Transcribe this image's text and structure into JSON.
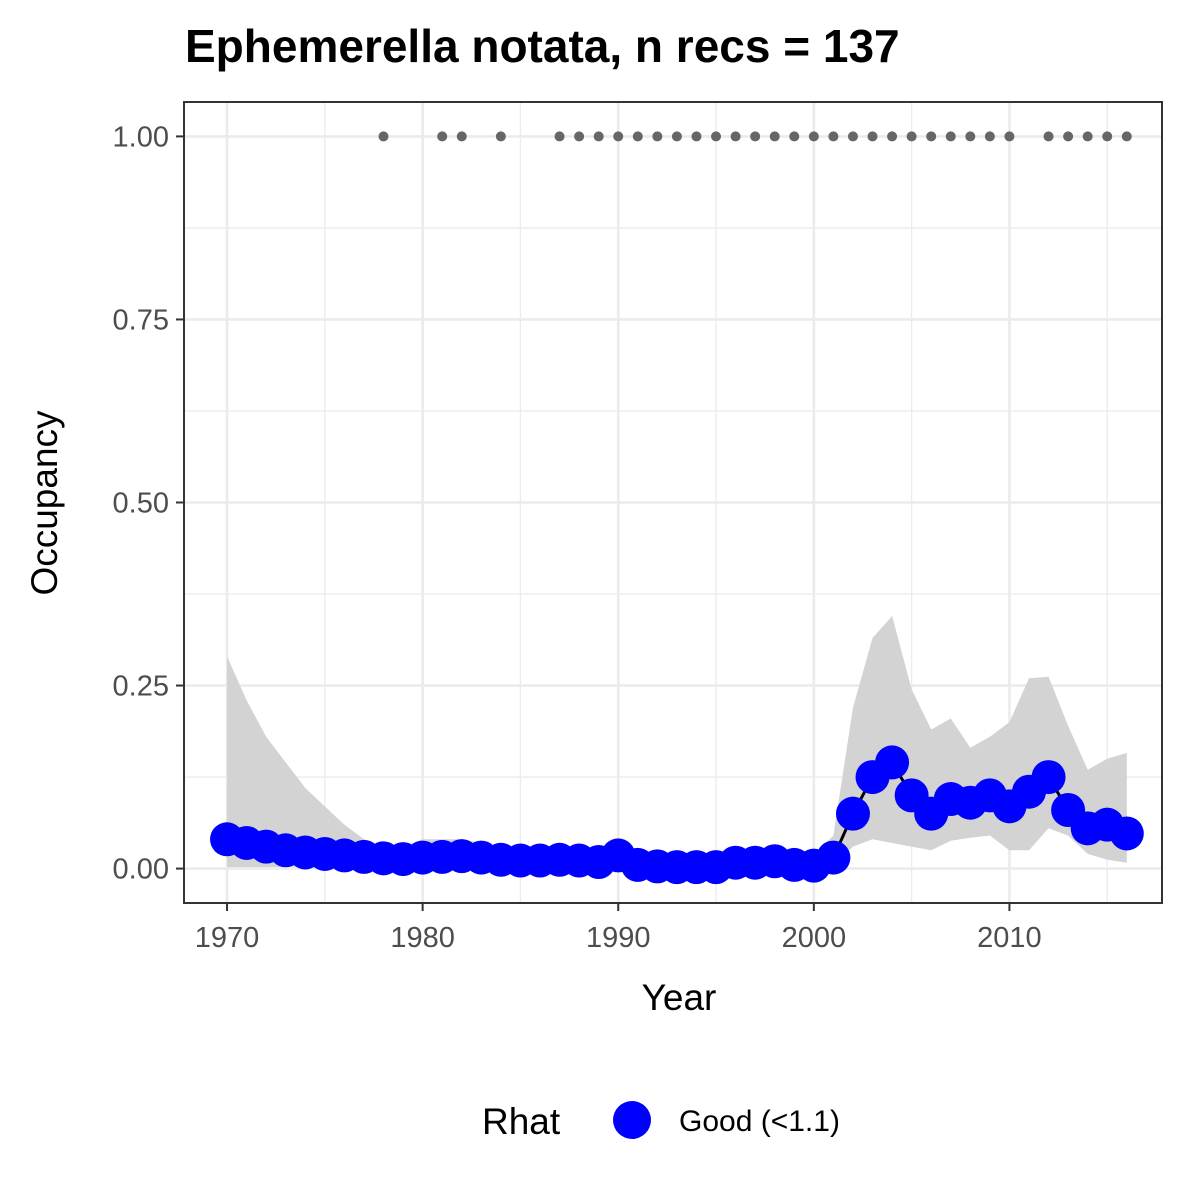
{
  "chart_data": {
    "type": "line",
    "title": "Ephemerella notata, n recs = 137",
    "xlabel": "Year",
    "ylabel": "Occupancy",
    "xlim": [
      1967.8,
      2017.8
    ],
    "ylim": [
      -0.047,
      1.047
    ],
    "x_ticks": [
      1970,
      1980,
      1990,
      2000,
      2010
    ],
    "x_tick_labels": [
      "1970",
      "1980",
      "1990",
      "2000",
      "2010"
    ],
    "y_ticks": [
      0,
      0.25,
      0.5,
      0.75,
      1
    ],
    "y_tick_labels": [
      "0.00",
      "0.25",
      "0.50",
      "0.75",
      "1.00"
    ],
    "grid": true,
    "legend_position": "bottom",
    "legend": {
      "title": "Rhat",
      "entries": [
        {
          "label": "Good (<1.1)",
          "color": "#0000ff"
        }
      ]
    },
    "colors": {
      "points": "#0000ff",
      "line": "#000000",
      "ribbon": "#d3d3d3",
      "records": "#666666",
      "grid": "#ebebeb",
      "panel_border": "#333333"
    },
    "series": [
      {
        "name": "Occupancy",
        "x": [
          1970,
          1971,
          1972,
          1973,
          1974,
          1975,
          1976,
          1977,
          1978,
          1979,
          1980,
          1981,
          1982,
          1983,
          1984,
          1985,
          1986,
          1987,
          1988,
          1989,
          1990,
          1991,
          1992,
          1993,
          1994,
          1995,
          1996,
          1997,
          1998,
          1999,
          2000,
          2001,
          2002,
          2003,
          2004,
          2005,
          2006,
          2007,
          2008,
          2009,
          2010,
          2011,
          2012,
          2013,
          2014,
          2015,
          2016
        ],
        "values": [
          0.04,
          0.035,
          0.03,
          0.025,
          0.022,
          0.02,
          0.018,
          0.016,
          0.014,
          0.013,
          0.015,
          0.016,
          0.017,
          0.015,
          0.012,
          0.011,
          0.011,
          0.012,
          0.011,
          0.009,
          0.018,
          0.005,
          0.003,
          0.002,
          0.002,
          0.002,
          0.008,
          0.008,
          0.01,
          0.005,
          0.004,
          0.015,
          0.075,
          0.125,
          0.145,
          0.1,
          0.075,
          0.095,
          0.09,
          0.1,
          0.085,
          0.105,
          0.125,
          0.08,
          0.055,
          0.06,
          0.048
        ],
        "lower": [
          0.002,
          0.002,
          0.002,
          0.002,
          0.002,
          0.002,
          0.002,
          0.002,
          0.001,
          0.001,
          0.002,
          0.002,
          0.002,
          0.002,
          0.001,
          0.001,
          0.001,
          0.001,
          0.001,
          0.001,
          0.002,
          0.0,
          0.0,
          0.0,
          0.0,
          0.0,
          0.001,
          0.001,
          0.001,
          0.0,
          0.0,
          0.003,
          0.03,
          0.04,
          0.035,
          0.03,
          0.025,
          0.038,
          0.042,
          0.045,
          0.025,
          0.025,
          0.055,
          0.045,
          0.02,
          0.012,
          0.008
        ],
        "upper": [
          0.29,
          0.23,
          0.18,
          0.145,
          0.11,
          0.085,
          0.06,
          0.04,
          0.03,
          0.03,
          0.04,
          0.04,
          0.04,
          0.035,
          0.03,
          0.03,
          0.028,
          0.03,
          0.028,
          0.025,
          0.04,
          0.02,
          0.02,
          0.02,
          0.018,
          0.018,
          0.025,
          0.025,
          0.028,
          0.02,
          0.02,
          0.045,
          0.22,
          0.315,
          0.345,
          0.245,
          0.19,
          0.205,
          0.165,
          0.18,
          0.2,
          0.26,
          0.262,
          0.195,
          0.135,
          0.15,
          0.158
        ]
      }
    ],
    "record_years": [
      1978,
      1981,
      1982,
      1984,
      1987,
      1988,
      1989,
      1990,
      1991,
      1992,
      1993,
      1994,
      1995,
      1996,
      1997,
      1998,
      1999,
      2000,
      2001,
      2002,
      2003,
      2004,
      2005,
      2006,
      2007,
      2008,
      2009,
      2010,
      2012,
      2013,
      2014,
      2015,
      2016
    ],
    "record_value": 1.0
  }
}
